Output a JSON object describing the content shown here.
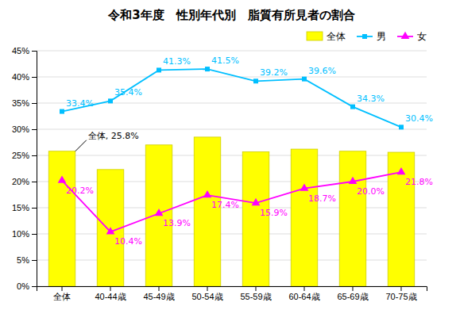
{
  "chart_data": {
    "type": "bar",
    "title": "令和3年度　性別年代別　脂質有所見者の割合",
    "categories": [
      "全体",
      "40-44歳",
      "45-49歳",
      "50-54歳",
      "55-59歳",
      "60-64歳",
      "65-69歳",
      "70-75歳"
    ],
    "series": [
      {
        "name": "全体",
        "type": "bar",
        "color": "#ffff00",
        "values": [
          25.8,
          22.3,
          27.0,
          28.5,
          25.7,
          26.2,
          25.8,
          25.6
        ]
      },
      {
        "name": "男",
        "type": "line",
        "color": "#00bfff",
        "marker": "square",
        "data_labels": true,
        "values": [
          33.4,
          35.4,
          41.3,
          41.5,
          39.2,
          39.6,
          34.3,
          30.4
        ],
        "value_labels": [
          "33.4%",
          "35.4%",
          "41.3%",
          "41.5%",
          "39.2%",
          "39.6%",
          "34.3%",
          "30.4%"
        ]
      },
      {
        "name": "女",
        "type": "line",
        "color": "#ff00ff",
        "marker": "triangle",
        "data_labels": true,
        "values": [
          20.2,
          10.4,
          13.9,
          17.4,
          15.9,
          18.7,
          20.0,
          21.8
        ],
        "value_labels": [
          "20.2%",
          "10.4%",
          "13.9%",
          "17.4%",
          "15.9%",
          "18.7%",
          "20.0%",
          "21.8%"
        ]
      }
    ],
    "ylim": [
      0,
      45
    ],
    "yticks": [
      {
        "value": 0,
        "label": "0%"
      },
      {
        "value": 5,
        "label": "5%"
      },
      {
        "value": 10,
        "label": "10%"
      },
      {
        "value": 15,
        "label": "15%"
      },
      {
        "value": 20,
        "label": "20%"
      },
      {
        "value": 25,
        "label": "25%"
      },
      {
        "value": 30,
        "label": "30%"
      },
      {
        "value": 35,
        "label": "35%"
      },
      {
        "value": 40,
        "label": "40%"
      },
      {
        "value": 45,
        "label": "45%"
      }
    ],
    "grid": true,
    "legend": "top",
    "annotations": [
      {
        "text": "全体, 25.8%",
        "category": "全体",
        "value": 25.8
      }
    ]
  }
}
